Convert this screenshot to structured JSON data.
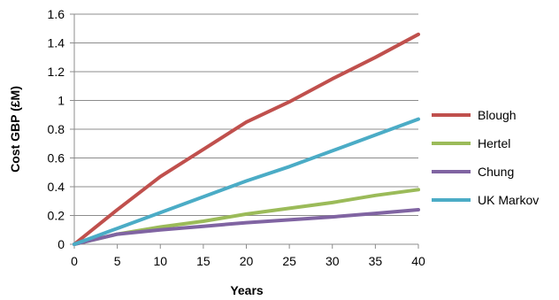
{
  "chart_data": {
    "type": "line",
    "xlabel": "Years",
    "ylabel": "Cost GBP (£M)",
    "xlim": [
      0,
      40
    ],
    "ylim": [
      0,
      1.6
    ],
    "x_ticks": [
      "0",
      "5",
      "10",
      "15",
      "20",
      "25",
      "30",
      "35",
      "40"
    ],
    "y_ticks": [
      "0",
      "0.2",
      "0.4",
      "0.6",
      "0.8",
      "1",
      "1.2",
      "1.4",
      "1.6"
    ],
    "grid": "horizontal",
    "legend_position": "right",
    "series": [
      {
        "name": "Blough",
        "color": "#c0504d",
        "x": [
          0,
          5,
          10,
          15,
          20,
          25,
          30,
          35,
          40
        ],
        "y": [
          0,
          0.24,
          0.47,
          0.66,
          0.85,
          0.99,
          1.15,
          1.3,
          1.46
        ]
      },
      {
        "name": "Hertel",
        "color": "#9bbb59",
        "x": [
          0,
          5,
          10,
          15,
          20,
          25,
          30,
          35,
          40
        ],
        "y": [
          0,
          0.07,
          0.12,
          0.16,
          0.21,
          0.25,
          0.29,
          0.34,
          0.38
        ]
      },
      {
        "name": "Chung",
        "color": "#8064a2",
        "x": [
          0,
          5,
          10,
          15,
          20,
          25,
          30,
          35,
          40
        ],
        "y": [
          0,
          0.07,
          0.1,
          0.125,
          0.15,
          0.17,
          0.19,
          0.215,
          0.24
        ]
      },
      {
        "name": "UK Markov",
        "color": "#4bacc6",
        "x": [
          0,
          5,
          10,
          15,
          20,
          25,
          30,
          35,
          40
        ],
        "y": [
          0,
          0.11,
          0.22,
          0.33,
          0.44,
          0.54,
          0.65,
          0.76,
          0.87
        ]
      }
    ]
  }
}
